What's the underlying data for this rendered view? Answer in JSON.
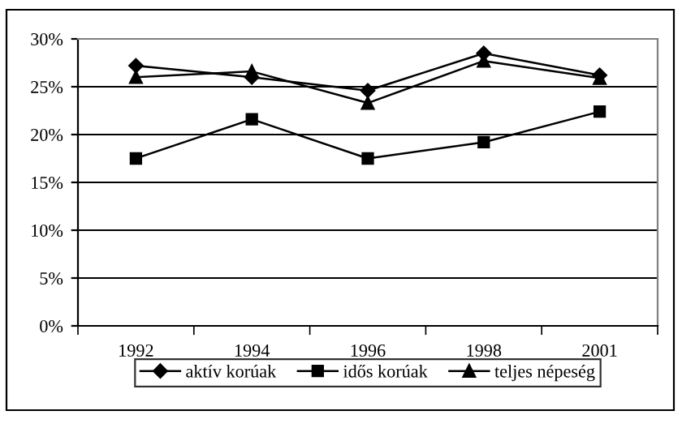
{
  "chart_data": {
    "type": "line",
    "categories": [
      "1992",
      "1994",
      "1996",
      "1998",
      "2001"
    ],
    "series": [
      {
        "name": "aktív korúak",
        "color": "#000000",
        "marker": "diamond",
        "values": [
          27.2,
          26.0,
          24.6,
          28.5,
          26.2
        ]
      },
      {
        "name": "idős korúak",
        "color": "#000000",
        "marker": "square",
        "values": [
          17.5,
          21.6,
          17.5,
          19.2,
          22.4
        ]
      },
      {
        "name": "teljes népeség",
        "color": "#000000",
        "marker": "triangle",
        "values": [
          26.0,
          26.6,
          23.3,
          27.7,
          25.9
        ]
      }
    ],
    "ylim": [
      0,
      30
    ],
    "yticks": [
      {
        "value": 0,
        "label": "0%"
      },
      {
        "value": 5,
        "label": "5%"
      },
      {
        "value": 10,
        "label": "10%"
      },
      {
        "value": 15,
        "label": "15%"
      },
      {
        "value": 20,
        "label": "20%"
      },
      {
        "value": 25,
        "label": "25%"
      },
      {
        "value": 30,
        "label": "30%"
      }
    ],
    "grid": "y",
    "legend": "bottom",
    "line_style": "solid"
  }
}
